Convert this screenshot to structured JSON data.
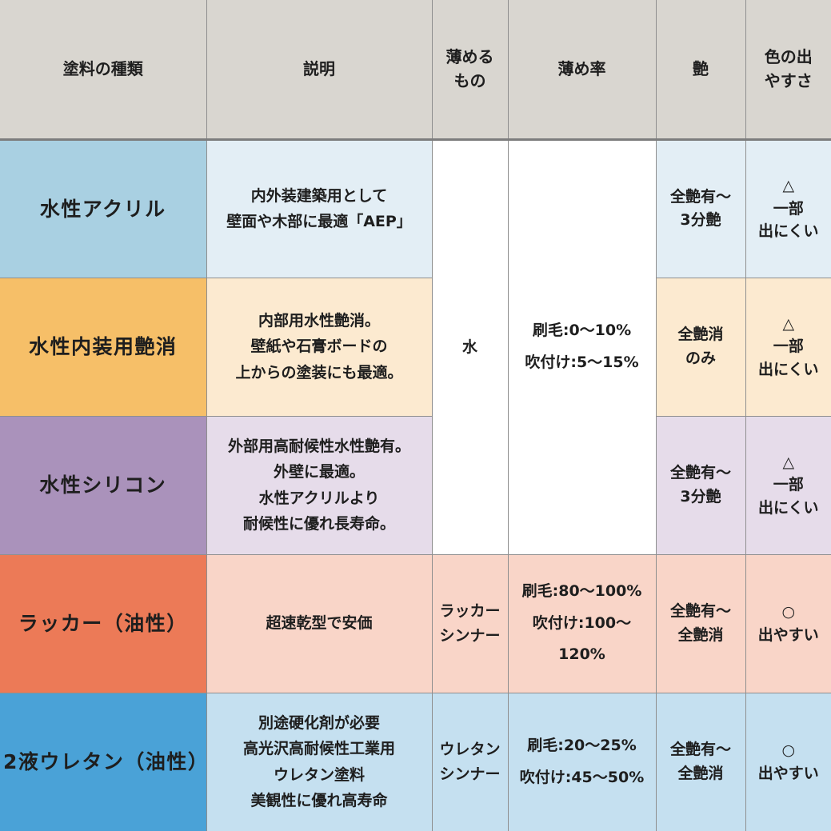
{
  "theme": {
    "header_bg": "#d9d6d0",
    "grid_line": "#8f8f8f",
    "header_divider": "#7d7d7d",
    "text_color": "#1e1e1e",
    "merged_cell_bg": "#ffffff"
  },
  "table": {
    "headers": [
      {
        "label": "塗料の種類"
      },
      {
        "label": "説明"
      },
      {
        "label": "薄める\nもの"
      },
      {
        "label": "薄め率"
      },
      {
        "label": "艶"
      },
      {
        "label": "色の出\nやすさ"
      }
    ],
    "rows": [
      {
        "name": "水性アクリル",
        "name_bg": "#a9d0e2",
        "tint_bg": "#e3eef5",
        "description": "内外装建築用として\n壁面や木部に最適「AEP」",
        "thinner": "水",
        "ratio": "刷毛:0～10%\n吹付け:5～15%",
        "gloss": "全艶有～\n3分艶",
        "color_ease": "△\n一部\n出にくい"
      },
      {
        "name": "水性内装用艶消",
        "name_bg": "#f6bf68",
        "tint_bg": "#fcead0",
        "description": "内部用水性艶消。\n壁紙や石膏ボードの\n上からの塗装にも最適。",
        "gloss": "全艶消\nのみ",
        "color_ease": "△\n一部\n出にくい"
      },
      {
        "name": "水性シリコン",
        "name_bg": "#aa92bb",
        "tint_bg": "#e6dcea",
        "description": "外部用高耐候性水性艶有。\n外壁に最適。\n水性アクリルより\n耐候性に優れ長寿命。",
        "gloss": "全艶有～\n3分艶",
        "color_ease": "△\n一部\n出にくい"
      },
      {
        "name": "ラッカー（油性）",
        "name_bg": "#ec7a57",
        "tint_bg": "#f9d5c8",
        "description": "超速乾型で安価",
        "thinner": "ラッカー\nシンナー",
        "ratio": "刷毛:80～100%\n吹付け:100～120%",
        "gloss": "全艶有～\n全艶消",
        "color_ease": "○\n出やすい"
      },
      {
        "name": "2液ウレタン（油性）",
        "name_bg": "#4aa2d7",
        "tint_bg": "#c5e0f0",
        "description": "別途硬化剤が必要\n高光沢高耐候性工業用\nウレタン塗料\n美観性に優れ高寿命",
        "thinner": "ウレタン\nシンナー",
        "ratio": "刷毛:20～25%\n吹付け:45～50%",
        "gloss": "全艶有～\n全艶消",
        "color_ease": "○\n出やすい"
      }
    ]
  },
  "chart_data": {
    "type": "table",
    "title": "",
    "columns": [
      "塗料の種類",
      "説明",
      "薄めるもの",
      "薄め率",
      "艶",
      "色の出やすさ"
    ],
    "rows": [
      [
        "水性アクリル",
        "内外装建築用として壁面や木部に最適「AEP」",
        "水",
        "刷毛:0～10% 吹付け:5～15%",
        "全艶有～3分艶",
        "△ 一部出にくい"
      ],
      [
        "水性内装用艶消",
        "内部用水性艶消。壁紙や石膏ボードの上からの塗装にも最適。",
        "水",
        "刷毛:0～10% 吹付け:5～15%",
        "全艶消のみ",
        "△ 一部出にくい"
      ],
      [
        "水性シリコン",
        "外部用高耐候性水性艶有。外壁に最適。水性アクリルより耐候性に優れ長寿命。",
        "水",
        "刷毛:0～10% 吹付け:5～15%",
        "全艶有～3分艶",
        "△ 一部出にくい"
      ],
      [
        "ラッカー（油性）",
        "超速乾型で安価",
        "ラッカーシンナー",
        "刷毛:80～100% 吹付け:100～120%",
        "全艶有～全艶消",
        "○ 出やすい"
      ],
      [
        "2液ウレタン（油性）",
        "別途硬化剤が必要 高光沢高耐候性工業用ウレタン塗料 美観性に優れ高寿命",
        "ウレタンシンナー",
        "刷毛:20～25% 吹付け:45～50%",
        "全艶有～全艶消",
        "○ 出やすい"
      ]
    ],
    "layout_hints": "薄めるもの・薄め率 cells are merged (white) across the first three water-based rows; each row uses a distinct accent color in column 1 with a pale tint for the other cells"
  }
}
